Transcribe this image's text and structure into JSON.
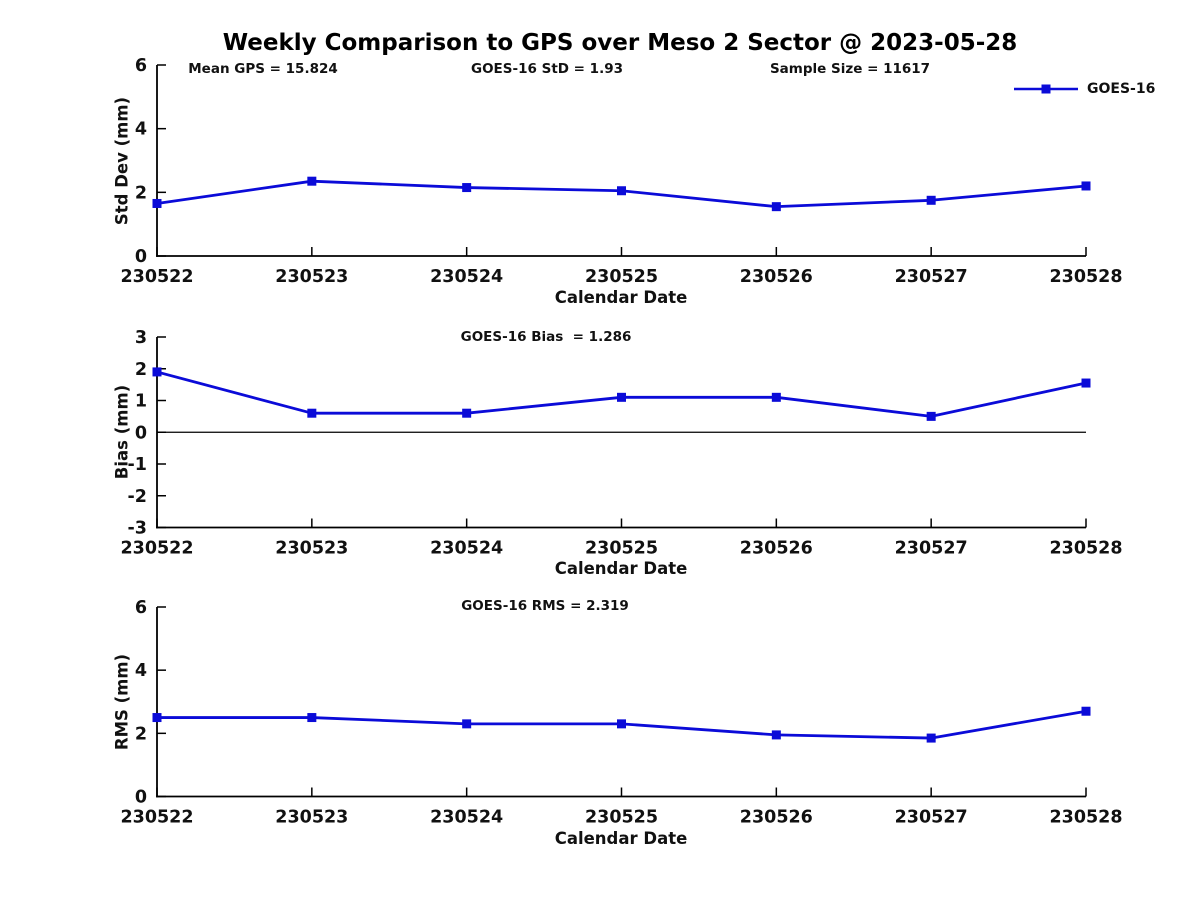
{
  "title": "Weekly Comparison to GPS over Meso 2 Sector @ 2023-05-28",
  "legend": {
    "label": "GOES-16"
  },
  "colors": {
    "series": "#0b0bd8",
    "axis": "#000000",
    "text": "#111111",
    "zero_line": "#000000"
  },
  "x_axis_label": "Calendar Date",
  "chart_data": [
    {
      "type": "line",
      "name": "std-dev",
      "stats": [
        "Mean GPS = 15.824",
        "GOES-16 StD = 1.93",
        "Sample Size = 11617"
      ],
      "ylabel": "Std Dev (mm)",
      "xlabel": "Calendar Date",
      "ylim": [
        0,
        6
      ],
      "yticks": [
        0,
        2,
        4,
        6
      ],
      "grid": false,
      "legend_position": "top-right",
      "categories": [
        "230522",
        "230523",
        "230524",
        "230525",
        "230526",
        "230527",
        "230528"
      ],
      "series": [
        {
          "name": "GOES-16",
          "values": [
            1.65,
            2.35,
            2.15,
            2.05,
            1.55,
            1.75,
            2.2
          ]
        }
      ]
    },
    {
      "type": "line",
      "name": "bias",
      "stats": [
        "GOES-16 Bias  = 1.286"
      ],
      "ylabel": "Bias (mm)",
      "xlabel": "Calendar Date",
      "ylim": [
        -3,
        3
      ],
      "yticks": [
        -3,
        -2,
        -1,
        0,
        1,
        2,
        3
      ],
      "zero_line": true,
      "grid": false,
      "categories": [
        "230522",
        "230523",
        "230524",
        "230525",
        "230526",
        "230527",
        "230528"
      ],
      "series": [
        {
          "name": "GOES-16",
          "values": [
            1.9,
            0.6,
            0.6,
            1.1,
            1.1,
            0.5,
            1.55
          ]
        }
      ]
    },
    {
      "type": "line",
      "name": "rms",
      "stats": [
        "GOES-16 RMS = 2.319"
      ],
      "ylabel": "RMS (mm)",
      "xlabel": "Calendar Date",
      "ylim": [
        0,
        6
      ],
      "yticks": [
        0,
        2,
        4,
        6
      ],
      "grid": false,
      "categories": [
        "230522",
        "230523",
        "230524",
        "230525",
        "230526",
        "230527",
        "230528"
      ],
      "series": [
        {
          "name": "GOES-16",
          "values": [
            2.5,
            2.5,
            2.3,
            2.3,
            1.95,
            1.85,
            2.7
          ]
        }
      ]
    }
  ]
}
